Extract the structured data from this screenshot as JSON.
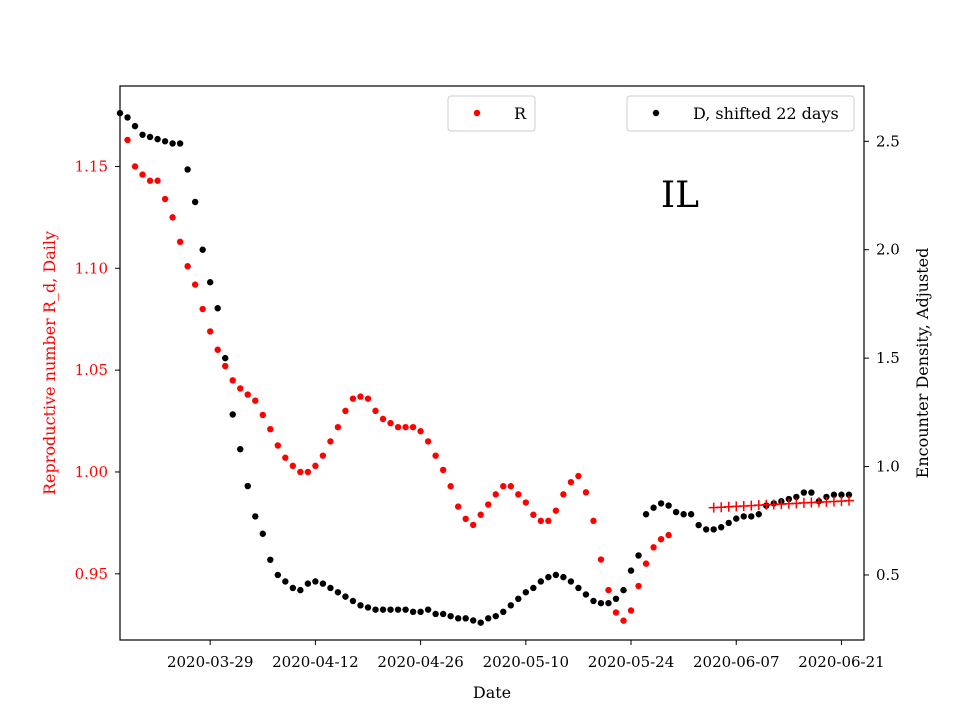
{
  "chart_data": {
    "type": "scatter",
    "title": "",
    "annotation": "IL",
    "xlabel": "Date",
    "ylabel_left": "Reproductive number R_d, Daily",
    "ylabel_right": "Encounter Density, Adjusted",
    "x_ticks": [
      "2020-03-29",
      "2020-04-12",
      "2020-04-26",
      "2020-05-10",
      "2020-05-24",
      "2020-06-07",
      "2020-06-21"
    ],
    "x_range": [
      "2020-03-17",
      "2020-06-24"
    ],
    "ylim_left": [
      0.9175,
      1.1895
    ],
    "ylim_right": [
      0.2,
      2.755
    ],
    "y_ticks_left": [
      "0.95",
      "1.00",
      "1.05",
      "1.10",
      "1.15"
    ],
    "y_ticks_right": [
      "0.5",
      "1.0",
      "1.5",
      "2.0",
      "2.5"
    ],
    "grid": false,
    "colors": {
      "R": "#ff0000",
      "D": "#000000",
      "projection": "#ff0000"
    },
    "legends": [
      {
        "label": "R",
        "position": "top-center"
      },
      {
        "label": "D, shifted 22 days",
        "position": "top-right"
      }
    ],
    "series": [
      {
        "name": "R",
        "axis": "left",
        "marker": "dot",
        "start": "2020-03-18",
        "values": [
          1.163,
          1.15,
          1.146,
          1.143,
          1.143,
          1.134,
          1.125,
          1.113,
          1.101,
          1.092,
          1.08,
          1.069,
          1.06,
          1.052,
          1.045,
          1.041,
          1.038,
          1.035,
          1.028,
          1.021,
          1.013,
          1.007,
          1.003,
          1.0,
          1.0,
          1.003,
          1.008,
          1.015,
          1.022,
          1.03,
          1.036,
          1.037,
          1.036,
          1.03,
          1.026,
          1.024,
          1.022,
          1.022,
          1.022,
          1.02,
          1.015,
          1.008,
          1.001,
          0.993,
          0.983,
          0.977,
          0.974,
          0.979,
          0.984,
          0.989,
          0.993,
          0.993,
          0.989,
          0.985,
          0.979,
          0.976,
          0.976,
          0.981,
          0.989,
          0.995,
          0.998,
          0.99,
          0.976,
          0.957,
          0.942,
          0.931,
          0.927,
          0.932,
          0.944,
          0.955,
          0.963,
          0.967,
          0.969
        ]
      },
      {
        "name": "D, shifted 22 days",
        "axis": "right",
        "marker": "dot",
        "start": "2020-03-17",
        "values": [
          2.63,
          2.61,
          2.57,
          2.53,
          2.52,
          2.51,
          2.5,
          2.49,
          2.49,
          2.37,
          2.22,
          2.0,
          1.85,
          1.73,
          1.5,
          1.24,
          1.08,
          0.91,
          0.77,
          0.69,
          0.57,
          0.5,
          0.47,
          0.44,
          0.43,
          0.46,
          0.47,
          0.46,
          0.44,
          0.42,
          0.4,
          0.38,
          0.36,
          0.35,
          0.34,
          0.34,
          0.34,
          0.34,
          0.34,
          0.33,
          0.33,
          0.34,
          0.32,
          0.32,
          0.31,
          0.3,
          0.3,
          0.29,
          0.28,
          0.3,
          0.31,
          0.33,
          0.36,
          0.39,
          0.42,
          0.44,
          0.47,
          0.49,
          0.5,
          0.49,
          0.47,
          0.44,
          0.41,
          0.38,
          0.37,
          0.37,
          0.39,
          0.43,
          0.52,
          0.59,
          0.78,
          0.81,
          0.83,
          0.82,
          0.79,
          0.78,
          0.78,
          0.73,
          0.71,
          0.71,
          0.72,
          0.74,
          0.76,
          0.77,
          0.77,
          0.78,
          0.82,
          0.83,
          0.84,
          0.85,
          0.86,
          0.88,
          0.88,
          0.84,
          0.86,
          0.87,
          0.87,
          0.87
        ]
      },
      {
        "name": "",
        "axis": "left",
        "marker": "plus",
        "start": "2020-06-04",
        "values": [
          0.9825,
          0.9827,
          0.9829,
          0.9831,
          0.9833,
          0.9835,
          0.9837,
          0.9839,
          0.984,
          0.9842,
          0.9844,
          0.9846,
          0.9848,
          0.985,
          0.9852,
          0.9853,
          0.9855,
          0.9857,
          0.9859
        ]
      }
    ]
  }
}
